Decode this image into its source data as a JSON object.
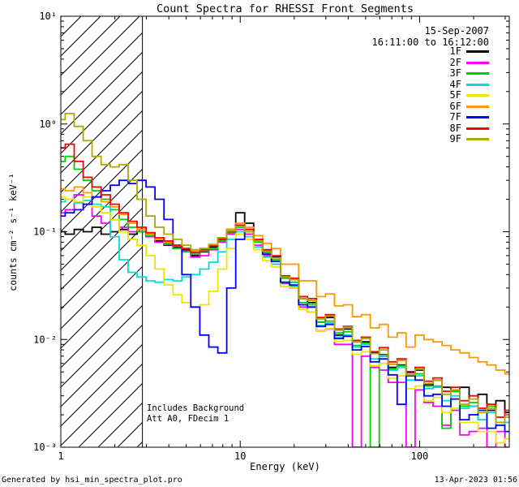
{
  "header": {
    "title": "Count Spectra for RHESSI Front Segments",
    "date": "15-Sep-2007",
    "time_range": "16:11:00 to 16:12:00"
  },
  "annotations": {
    "background_note": "Includes Background",
    "attenuator_note": "Att A0, FDecim 1"
  },
  "footer": {
    "generator": "Generated by hsi_min_spectra_plot.pro",
    "timestamp": "13-Apr-2023 01:56"
  },
  "chart_data": {
    "type": "line",
    "style": "histogram-step",
    "x_scale": "log",
    "y_scale": "log",
    "title": "Count Spectra for RHESSI Front Segments",
    "xlabel": "Energy (keV)",
    "ylabel": "counts cm⁻² s⁻¹ keV⁻¹",
    "xlim": [
      1,
      316
    ],
    "ylim": [
      0.001,
      10
    ],
    "grid": false,
    "legend_position": "top-right",
    "x_ticks": [
      {
        "value": 1,
        "label": "1"
      },
      {
        "value": 10,
        "label": "10"
      },
      {
        "value": 100,
        "label": "100"
      }
    ],
    "y_ticks": [
      {
        "value": 10,
        "label": "10¹"
      },
      {
        "value": 1,
        "label": "10⁰"
      },
      {
        "value": 0.1,
        "label": "10⁻¹"
      },
      {
        "value": 0.01,
        "label": "10⁻²"
      },
      {
        "value": 0.001,
        "label": "10⁻³"
      }
    ],
    "hatch_region": {
      "from": 1,
      "to": 2.85
    },
    "energies_keV": [
      1.0,
      1.12,
      1.26,
      1.41,
      1.58,
      1.78,
      2.0,
      2.24,
      2.51,
      2.82,
      3.16,
      3.55,
      3.98,
      4.47,
      5.01,
      5.62,
      6.31,
      7.08,
      7.94,
      8.91,
      10.0,
      11.2,
      12.6,
      14.1,
      15.8,
      17.8,
      20.0,
      22.4,
      25.1,
      28.2,
      31.6,
      35.5,
      39.8,
      44.7,
      50.1,
      56.2,
      63.1,
      70.8,
      79.4,
      89.1,
      100,
      112,
      126,
      141,
      158,
      178,
      200,
      224,
      251,
      282,
      316
    ],
    "series": [
      {
        "name": "1F",
        "color": "#000000",
        "values": [
          0.1,
          0.095,
          0.105,
          0.1,
          0.11,
          0.095,
          0.1,
          0.105,
          0.095,
          0.1,
          0.09,
          0.082,
          0.075,
          0.072,
          0.068,
          0.06,
          0.065,
          0.072,
          0.085,
          0.105,
          0.15,
          0.12,
          0.082,
          0.066,
          0.058,
          0.038,
          0.036,
          0.024,
          0.022,
          0.0145,
          0.016,
          0.011,
          0.0125,
          0.0095,
          0.0095,
          0.0075,
          0.0072,
          0.0055,
          0.0058,
          0.005,
          0.0052,
          0.0038,
          0.0042,
          0.0036,
          0.0033,
          0.0036,
          0.0024,
          0.0031,
          0.0022,
          0.0027,
          0.0021
        ]
      },
      {
        "name": "2F",
        "color": "#ff00ff",
        "values": [
          0.15,
          0.16,
          0.22,
          0.18,
          0.14,
          0.12,
          0.13,
          0.11,
          0.1,
          0.105,
          0.09,
          0.08,
          0.076,
          0.07,
          0.066,
          0.058,
          0.06,
          0.068,
          0.08,
          0.095,
          0.105,
          0.095,
          0.075,
          0.06,
          0.05,
          0.033,
          0.03,
          0.02,
          0.018,
          0.012,
          0.0125,
          0.009,
          0.009,
          0.001,
          0.007,
          0.0055,
          0.0052,
          0.004,
          0.004,
          0.001,
          0.0034,
          0.0026,
          0.0024,
          0.0016,
          0.0022,
          0.0013,
          0.0014,
          0.0015,
          0.001,
          0.0014,
          0.001
        ]
      },
      {
        "name": "3F",
        "color": "#00cc00",
        "values": [
          0.45,
          0.5,
          0.38,
          0.3,
          0.24,
          0.2,
          0.16,
          0.13,
          0.11,
          0.1,
          0.092,
          0.085,
          0.078,
          0.07,
          0.065,
          0.062,
          0.066,
          0.07,
          0.082,
          0.098,
          0.11,
          0.1,
          0.08,
          0.064,
          0.055,
          0.037,
          0.034,
          0.022,
          0.021,
          0.0145,
          0.0148,
          0.0115,
          0.0118,
          0.0088,
          0.0092,
          0.001,
          0.007,
          0.0053,
          0.0057,
          0.0042,
          0.0048,
          0.0037,
          0.0037,
          0.0015,
          0.0033,
          0.0024,
          0.0026,
          0.0018,
          0.0024,
          0.0017,
          0.0017
        ]
      },
      {
        "name": "4F",
        "color": "#00dddd",
        "values": [
          0.19,
          0.2,
          0.185,
          0.195,
          0.18,
          0.17,
          0.09,
          0.055,
          0.042,
          0.038,
          0.035,
          0.034,
          0.036,
          0.035,
          0.038,
          0.04,
          0.045,
          0.052,
          0.065,
          0.085,
          0.1,
          0.09,
          0.072,
          0.058,
          0.05,
          0.034,
          0.031,
          0.021,
          0.02,
          0.0135,
          0.0142,
          0.0105,
          0.011,
          0.0085,
          0.009,
          0.0066,
          0.0071,
          0.0052,
          0.0055,
          0.0042,
          0.0046,
          0.0035,
          0.0036,
          0.0027,
          0.003,
          0.0023,
          0.0024,
          0.0018,
          0.0021,
          0.0016,
          0.0017
        ]
      },
      {
        "name": "5F",
        "color": "#f2e400",
        "values": [
          0.21,
          0.2,
          0.19,
          0.21,
          0.17,
          0.15,
          0.13,
          0.1,
          0.085,
          0.075,
          0.06,
          0.045,
          0.032,
          0.026,
          0.022,
          0.02,
          0.021,
          0.028,
          0.045,
          0.07,
          0.095,
          0.085,
          0.068,
          0.054,
          0.047,
          0.031,
          0.03,
          0.019,
          0.018,
          0.012,
          0.0126,
          0.0096,
          0.0098,
          0.0073,
          0.0077,
          0.0057,
          0.006,
          0.0044,
          0.0046,
          0.0035,
          0.0037,
          0.0027,
          0.0029,
          0.0021,
          0.0023,
          0.0017,
          0.0017,
          0.0014,
          0.0014,
          0.0011,
          0.0012
        ]
      },
      {
        "name": "6F",
        "color": "#ff9900",
        "values": [
          0.25,
          0.24,
          0.26,
          0.23,
          0.21,
          0.19,
          0.17,
          0.145,
          0.12,
          0.105,
          0.095,
          0.085,
          0.08,
          0.075,
          0.07,
          0.066,
          0.07,
          0.076,
          0.088,
          0.105,
          0.12,
          0.11,
          0.092,
          0.078,
          0.07,
          0.05,
          0.05,
          0.035,
          0.035,
          0.025,
          0.0265,
          0.0205,
          0.021,
          0.0163,
          0.017,
          0.0128,
          0.0138,
          0.0105,
          0.0115,
          0.0085,
          0.011,
          0.01,
          0.0095,
          0.0088,
          0.008,
          0.0075,
          0.0068,
          0.0062,
          0.0058,
          0.0052,
          0.0048
        ]
      },
      {
        "name": "7F",
        "color": "#0000ff",
        "values": [
          0.14,
          0.15,
          0.16,
          0.18,
          0.21,
          0.24,
          0.27,
          0.3,
          0.28,
          0.3,
          0.26,
          0.2,
          0.13,
          0.075,
          0.04,
          0.02,
          0.011,
          0.0085,
          0.0075,
          0.03,
          0.085,
          0.105,
          0.085,
          0.062,
          0.053,
          0.034,
          0.032,
          0.021,
          0.02,
          0.0132,
          0.0138,
          0.0102,
          0.0107,
          0.008,
          0.0086,
          0.0062,
          0.0066,
          0.0047,
          0.0025,
          0.0046,
          0.0042,
          0.003,
          0.0031,
          0.0024,
          0.0028,
          0.0018,
          0.002,
          0.0022,
          0.0015,
          0.0016,
          0.0014
        ]
      },
      {
        "name": "8F",
        "color": "#ff0000",
        "values": [
          0.6,
          0.65,
          0.45,
          0.32,
          0.26,
          0.22,
          0.18,
          0.15,
          0.125,
          0.11,
          0.098,
          0.088,
          0.082,
          0.075,
          0.07,
          0.064,
          0.068,
          0.074,
          0.086,
          0.1,
          0.115,
          0.105,
          0.085,
          0.068,
          0.06,
          0.039,
          0.037,
          0.025,
          0.024,
          0.016,
          0.017,
          0.0125,
          0.0132,
          0.0098,
          0.0105,
          0.0077,
          0.0084,
          0.0062,
          0.0066,
          0.0049,
          0.0055,
          0.0041,
          0.0044,
          0.0033,
          0.0036,
          0.0027,
          0.003,
          0.0023,
          0.0025,
          0.0019,
          0.0022
        ]
      },
      {
        "name": "9F",
        "color": "#aaaa00",
        "values": [
          1.1,
          1.25,
          0.95,
          0.7,
          0.5,
          0.42,
          0.4,
          0.42,
          0.3,
          0.2,
          0.14,
          0.11,
          0.095,
          0.085,
          0.075,
          0.068,
          0.07,
          0.076,
          0.088,
          0.102,
          0.112,
          0.1,
          0.082,
          0.066,
          0.057,
          0.038,
          0.036,
          0.024,
          0.023,
          0.0155,
          0.0165,
          0.0122,
          0.013,
          0.0095,
          0.0102,
          0.0074,
          0.008,
          0.0059,
          0.0064,
          0.0047,
          0.0053,
          0.0039,
          0.0042,
          0.0031,
          0.0034,
          0.0025,
          0.0028,
          0.0021,
          0.0023,
          0.0017,
          0.0019
        ]
      }
    ]
  }
}
